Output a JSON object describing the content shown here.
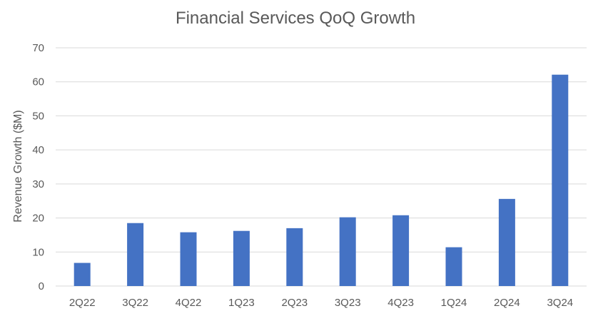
{
  "chart_data": {
    "type": "bar",
    "title": "Financial Services QoQ Growth",
    "xlabel": "",
    "ylabel": "Revenue Growth ($M)",
    "categories": [
      "2Q22",
      "3Q22",
      "4Q22",
      "1Q23",
      "2Q23",
      "3Q23",
      "4Q23",
      "1Q24",
      "2Q24",
      "3Q24"
    ],
    "series": [
      {
        "values": [
          6.8,
          18.5,
          15.8,
          16.2,
          17.0,
          20.2,
          20.8,
          11.4,
          25.6,
          62.1
        ]
      }
    ],
    "ylim": [
      0,
      70
    ],
    "yticks": [
      0,
      10,
      20,
      30,
      40,
      50,
      60,
      70
    ],
    "grid": true,
    "legend": "none",
    "bar_color": "#4472C4"
  }
}
